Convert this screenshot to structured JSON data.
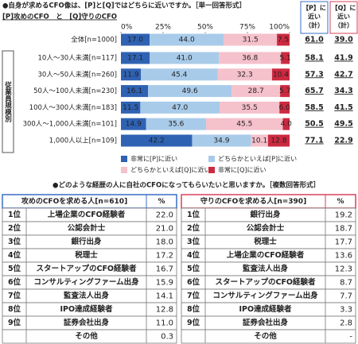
{
  "chart_data": {
    "type": "bar",
    "stacked": true,
    "horizontal": true,
    "title": "●自身が求めるCFO像は、[P]と[Q]ではどちらに近いですか。［単一回答形式］",
    "subtitle": "[P]攻めのCFO　と　[Q]守りのCFO",
    "categories": [
      "全体[n=1000]",
      "10人～30人未満[n=117]",
      "30人～50人未満[n=260]",
      "50人～100人未満[n=230]",
      "100人～300人未満[n=183]",
      "300人～1,000人未満[n=101]",
      "1,000人以上[n=109]"
    ],
    "group_label": "従業員規模別",
    "series": [
      {
        "name": "非常に[P]に近い",
        "color": "#2f62b3",
        "text_color": "#ffffff",
        "values": [
          17.0,
          17.1,
          11.9,
          16.1,
          11.5,
          14.9,
          42.2
        ],
        "value_labels": [
          "17.0",
          "17.1",
          "11.9",
          "16.1",
          "11.5",
          "14.9",
          "42.2"
        ]
      },
      {
        "name": "どちらかといえば[P]に近い",
        "color": "#a9cbea",
        "text_color": "#222222",
        "values": [
          44.0,
          41.0,
          45.4,
          49.6,
          47.0,
          35.6,
          34.9
        ],
        "value_labels": [
          "44.0",
          "41.0",
          "45.4",
          "49.6",
          "47.0",
          "35.6",
          "34.9"
        ]
      },
      {
        "name": "どちらかといえば[Q]に近い",
        "color": "#f5c1cb",
        "text_color": "#222222",
        "values": [
          31.5,
          36.8,
          32.3,
          28.7,
          35.5,
          45.5,
          10.1
        ],
        "value_labels": [
          "31.5",
          "36.8",
          "32.3",
          "28.7",
          "35.5",
          "45.5",
          "10.1"
        ]
      },
      {
        "name": "非常に[Q]に近い",
        "color": "#cc2a40",
        "text_color": "#ffffff",
        "values": [
          7.5,
          5.1,
          10.4,
          5.7,
          6.0,
          4.0,
          12.8
        ],
        "value_labels": [
          "7.5",
          "5.1",
          "10.4",
          "5.7",
          "6.0",
          "4.0",
          "12.8"
        ]
      }
    ],
    "xlim": [
      0,
      100
    ],
    "xticks": [
      {
        "value": 0,
        "label": "0%"
      },
      {
        "value": 25,
        "label": "25%"
      },
      {
        "value": 50,
        "label": "50%"
      },
      {
        "value": 75,
        "label": "75%"
      },
      {
        "value": 100,
        "label": "100%"
      }
    ],
    "totals": {
      "headers": [
        [
          "【P】に",
          "近い",
          "（計）"
        ],
        [
          "【Q】に",
          "近い",
          "（計）"
        ]
      ],
      "rows": [
        [
          "61.0",
          "39.0"
        ],
        [
          "58.1",
          "41.9"
        ],
        [
          "57.3",
          "42.7"
        ],
        [
          "65.7",
          "34.3"
        ],
        [
          "58.5",
          "41.5"
        ],
        [
          "50.5",
          "49.5"
        ],
        [
          "77.1",
          "22.9"
        ]
      ]
    }
  },
  "ranking": {
    "title": "●どのような経歴の人に自社のCFOになってもらいたいと思いますか。［複数回答形式］",
    "tables": [
      {
        "header": "攻めのCFOを求める人[n=610]",
        "unit": "%",
        "rows": [
          {
            "rank": "1位",
            "item": "上場企業のCFO経験者",
            "value": "22.0"
          },
          {
            "rank": "2位",
            "item": "公認会計士",
            "value": "21.0"
          },
          {
            "rank": "3位",
            "item": "銀行出身",
            "value": "18.0"
          },
          {
            "rank": "4位",
            "item": "税理士",
            "value": "17.2"
          },
          {
            "rank": "5位",
            "item": "スタートアップのCFO経験者",
            "value": "16.7"
          },
          {
            "rank": "6位",
            "item": "コンサルティングファーム出身",
            "value": "15.9"
          },
          {
            "rank": "7位",
            "item": "監査法人出身",
            "value": "14.1"
          },
          {
            "rank": "8位",
            "item": "IPO達成経験者",
            "value": "12.8"
          },
          {
            "rank": "9位",
            "item": "証券会社出身",
            "value": "11.0"
          },
          {
            "item": "その他",
            "value": "0.3"
          }
        ]
      },
      {
        "header": "守りのCFOを求める人[n=390]",
        "unit": "%",
        "rows": [
          {
            "rank": "1位",
            "item": "銀行出身",
            "value": "19.2"
          },
          {
            "rank": "2位",
            "item": "公認会計士",
            "value": "18.7"
          },
          {
            "rank": "3位",
            "item": "税理士",
            "value": "17.7"
          },
          {
            "rank": "4位",
            "item": "上場企業のCFO経験者",
            "value": "13.6"
          },
          {
            "rank": "5位",
            "item": "監査法人出身",
            "value": "12.3"
          },
          {
            "rank": "6位",
            "item": "スタートアップのCFO経験者",
            "value": "8.7"
          },
          {
            "rank": "7位",
            "item": "コンサルティングファーム出身",
            "value": "7.7"
          },
          {
            "rank": "8位",
            "item": "IPO達成経験者",
            "value": "3.3"
          },
          {
            "rank": "9位",
            "item": "証券会社出身",
            "value": "2.8"
          },
          {
            "item": "その他",
            "value": "-"
          }
        ]
      }
    ]
  }
}
